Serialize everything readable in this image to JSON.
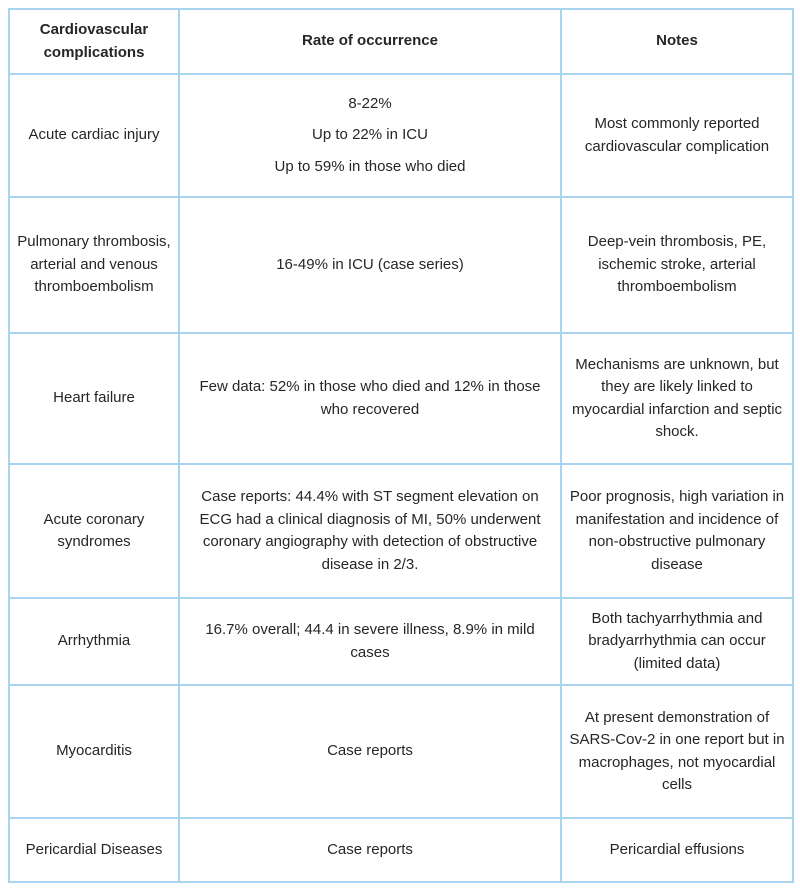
{
  "colors": {
    "border": "#a9d4f0",
    "text": "#262626",
    "background": "#ffffff"
  },
  "header": {
    "col_complications": "Cardiovascular complications",
    "col_rate": "Rate of occurrence",
    "col_notes": "Notes"
  },
  "rows": [
    {
      "complication": "Acute cardiac injury",
      "rate_paragraphs": [
        "8-22%",
        "Up to 22% in ICU",
        "Up to 59% in those who died"
      ],
      "notes": "Most commonly reported cardiovascular complication"
    },
    {
      "complication": "Pulmonary thrombosis, arterial and venous thromboembolism",
      "rate": "16-49% in ICU (case series)",
      "notes": "Deep-vein thrombosis, PE, ischemic stroke, arterial thromboembolism"
    },
    {
      "complication": "Heart failure",
      "rate": "Few data: 52% in those who died and 12% in those who recovered",
      "notes": "Mechanisms are unknown, but they are likely linked to myocardial infarction and septic shock."
    },
    {
      "complication": "Acute coronary syndromes",
      "rate": "Case reports: 44.4% with ST segment elevation on ECG had a clinical diagnosis of MI, 50% underwent coronary angiography with detection of obstructive disease in 2/3.",
      "notes": "Poor prognosis, high variation in manifestation and incidence of non-obstructive pulmonary disease"
    },
    {
      "complication": "Arrhythmia",
      "rate": "16.7% overall; 44.4 in severe illness, 8.9% in mild cases",
      "notes": "Both tachyarrhythmia and bradyarrhythmia can occur (limited data)"
    },
    {
      "complication": "Myocarditis",
      "rate": "Case reports",
      "notes": "At present demonstration of SARS-Cov-2 in one report but in macrophages, not myocardial cells"
    },
    {
      "complication": "Pericardial Diseases",
      "rate": "Case reports",
      "notes": "Pericardial effusions"
    }
  ]
}
